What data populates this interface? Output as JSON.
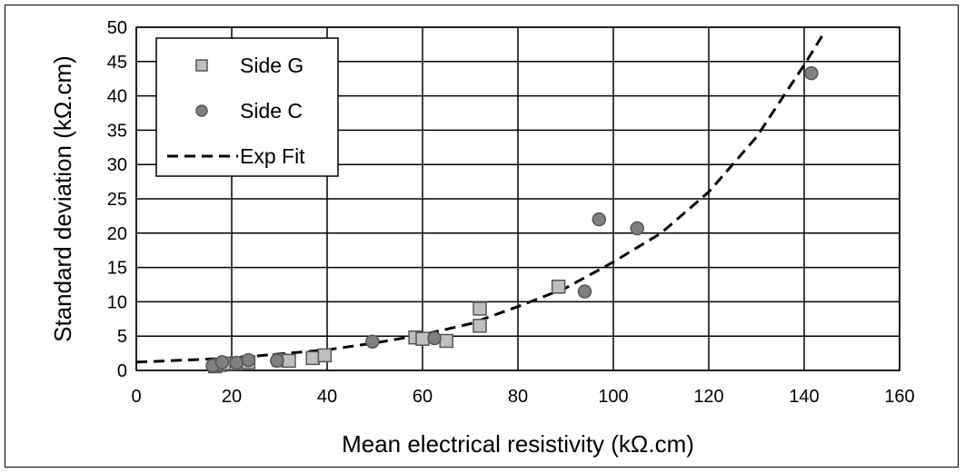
{
  "chart_data": {
    "type": "scatter",
    "xlabel": "Mean electrical resistivity (kΩ.cm)",
    "ylabel": "Standard deviation (kΩ.cm)",
    "xlim": [
      0,
      160
    ],
    "ylim": [
      0,
      50
    ],
    "x_ticks": [
      0,
      20,
      40,
      60,
      80,
      100,
      120,
      140,
      160
    ],
    "y_ticks": [
      0,
      5,
      10,
      15,
      20,
      25,
      30,
      35,
      40,
      45,
      50
    ],
    "grid": true,
    "legend_position": "top-left",
    "legend": [
      {
        "label": "Side G",
        "marker": "square"
      },
      {
        "label": "Side C",
        "marker": "circle"
      },
      {
        "label": "Exp Fit",
        "marker": "dashed-line"
      }
    ],
    "series": [
      {
        "name": "Side G",
        "marker": "square",
        "color": "#bfbfbf",
        "points": [
          {
            "x": 16.5,
            "y": 0.6
          },
          {
            "x": 17.5,
            "y": 0.8
          },
          {
            "x": 18.5,
            "y": 1.0
          },
          {
            "x": 21,
            "y": 1.0
          },
          {
            "x": 23.5,
            "y": 1.2
          },
          {
            "x": 30,
            "y": 1.5
          },
          {
            "x": 32,
            "y": 1.4
          },
          {
            "x": 37,
            "y": 1.8
          },
          {
            "x": 39.5,
            "y": 2.2
          },
          {
            "x": 58.5,
            "y": 4.8
          },
          {
            "x": 60,
            "y": 4.6
          },
          {
            "x": 65,
            "y": 4.3
          },
          {
            "x": 72,
            "y": 6.5
          },
          {
            "x": 72,
            "y": 9.0
          },
          {
            "x": 88.5,
            "y": 12.2
          }
        ]
      },
      {
        "name": "Side C",
        "marker": "circle",
        "color": "#808080",
        "points": [
          {
            "x": 16,
            "y": 0.7
          },
          {
            "x": 18,
            "y": 1.2
          },
          {
            "x": 21,
            "y": 1.1
          },
          {
            "x": 23.5,
            "y": 1.5
          },
          {
            "x": 29.5,
            "y": 1.4
          },
          {
            "x": 49.5,
            "y": 4.2
          },
          {
            "x": 62.5,
            "y": 4.7
          },
          {
            "x": 94,
            "y": 11.5
          },
          {
            "x": 97,
            "y": 22.0
          },
          {
            "x": 105,
            "y": 20.7
          },
          {
            "x": 141.5,
            "y": 43.3
          }
        ]
      },
      {
        "name": "Exp Fit",
        "style": "dashed",
        "color": "#000000",
        "points": [
          {
            "x": 0,
            "y": 1.2
          },
          {
            "x": 10,
            "y": 1.5
          },
          {
            "x": 20,
            "y": 1.8
          },
          {
            "x": 30,
            "y": 2.4
          },
          {
            "x": 40,
            "y": 3.0
          },
          {
            "x": 50,
            "y": 4.0
          },
          {
            "x": 60,
            "y": 5.2
          },
          {
            "x": 70,
            "y": 6.8
          },
          {
            "x": 80,
            "y": 9.3
          },
          {
            "x": 90,
            "y": 12.0
          },
          {
            "x": 100,
            "y": 15.8
          },
          {
            "x": 110,
            "y": 20.0
          },
          {
            "x": 120,
            "y": 26.0
          },
          {
            "x": 130,
            "y": 34.0
          },
          {
            "x": 140,
            "y": 44.5
          },
          {
            "x": 144,
            "y": 49.0
          }
        ]
      }
    ]
  }
}
